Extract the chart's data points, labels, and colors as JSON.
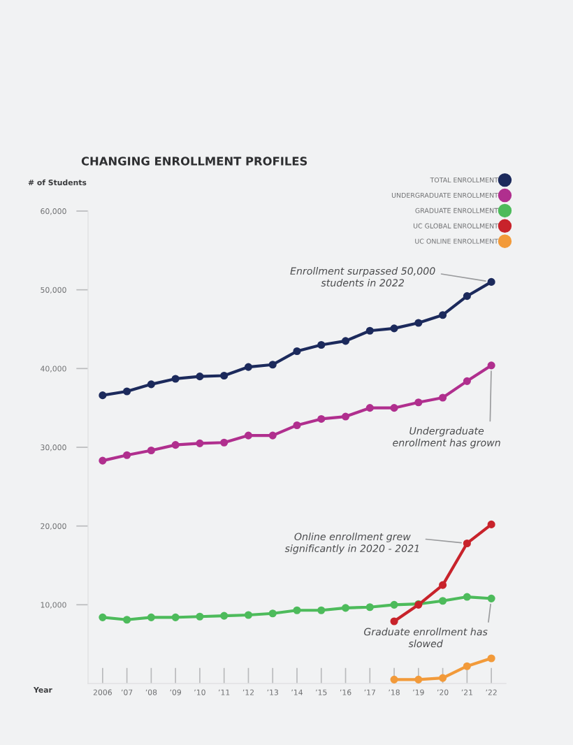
{
  "chart_data": {
    "type": "line",
    "title": "CHANGING ENROLLMENT PROFILES",
    "xlabel": "Year",
    "ylabel": "# of Students",
    "categories": [
      "2006",
      "’07",
      "’08",
      "’09",
      "’10",
      "’11",
      "’12",
      "’13",
      "’14",
      "’15",
      "’16",
      "’17",
      "’18",
      "’19",
      "’20",
      "’21",
      "’22"
    ],
    "series": [
      {
        "name": "TOTAL ENROLLMENT",
        "color": "#1c2a5c",
        "values": [
          36600,
          37100,
          38000,
          38700,
          39000,
          39100,
          40200,
          40500,
          42200,
          43000,
          43500,
          44800,
          45100,
          45800,
          46800,
          49200,
          51000
        ]
      },
      {
        "name": "UNDERGRADUATE ENROLLMENT",
        "color": "#b02f8e",
        "values": [
          28300,
          29000,
          29600,
          30300,
          30500,
          30600,
          31500,
          31500,
          32800,
          33600,
          33900,
          35000,
          35000,
          35700,
          36300,
          38400,
          40400
        ]
      },
      {
        "name": "GRADUATE ENROLLMENT",
        "color": "#4dbb5b",
        "values": [
          8400,
          8100,
          8400,
          8400,
          8500,
          8600,
          8700,
          8900,
          9300,
          9300,
          9600,
          9700,
          10000,
          10100,
          10500,
          11000,
          10800
        ]
      },
      {
        "name": "UC GLOBAL ENROLLMENT",
        "color": "#c8232b",
        "values": [
          null,
          null,
          null,
          null,
          null,
          null,
          null,
          null,
          null,
          null,
          null,
          null,
          7900,
          10000,
          12500,
          17800,
          20200
        ]
      },
      {
        "name": "UC ONLINE ENROLLMENT",
        "color": "#f29a3a",
        "values": [
          null,
          null,
          null,
          null,
          null,
          null,
          null,
          null,
          null,
          null,
          null,
          null,
          500,
          500,
          700,
          2200,
          3200
        ]
      }
    ],
    "ylim": [
      0,
      60000
    ],
    "yticks": [
      {
        "value": 10000,
        "label": "10,000"
      },
      {
        "value": 20000,
        "label": "20,000"
      },
      {
        "value": 30000,
        "label": "30,000"
      },
      {
        "value": 40000,
        "label": "40,000"
      },
      {
        "value": 50000,
        "label": "50,000"
      },
      {
        "value": 60000,
        "label": "60,000"
      }
    ],
    "annotations": [
      {
        "text": "Enrollment surpassed 50,000\nstudents in 2022",
        "x": "’22",
        "y": 51000
      },
      {
        "text": "Undergraduate\nenrollment has grown",
        "x": "’22",
        "y": 40400
      },
      {
        "text": "Online enrollment grew\nsignificantly in 2020 - 2021",
        "x": "’21",
        "y": 17800
      },
      {
        "text": "Graduate enrollment has\nslowed",
        "x": "’22",
        "y": 10800
      }
    ],
    "marker": "circle",
    "line_style": "solid",
    "legend": "top right",
    "grid": false
  }
}
